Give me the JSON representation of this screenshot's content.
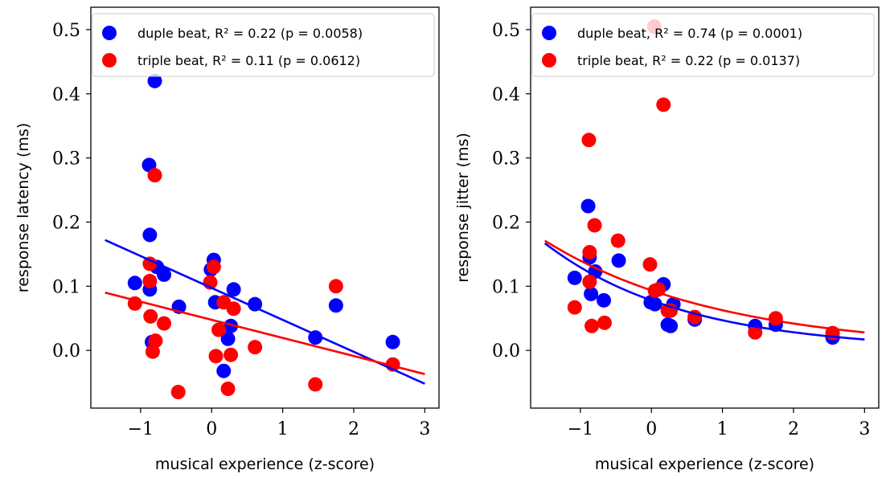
{
  "chart_data": [
    {
      "type": "scatter",
      "xlabel": "musical experience (z-score)",
      "ylabel": "response latency (ms)",
      "xlim": [
        -1.7,
        3.2
      ],
      "ylim": [
        -0.09,
        0.535
      ],
      "xticks": [
        -1,
        0,
        1,
        2,
        3
      ],
      "yticks": [
        0.0,
        0.1,
        0.2,
        0.3,
        0.4,
        0.5
      ],
      "legend_position": "top-right",
      "series": [
        {
          "name": "duple beat, R² = 0.22 (p = 0.0058)",
          "color": "#0000ff",
          "points": [
            [
              -1.08,
              0.105
            ],
            [
              -0.88,
              0.289
            ],
            [
              -0.87,
              0.18
            ],
            [
              -0.87,
              0.095
            ],
            [
              -0.84,
              0.013
            ],
            [
              -0.8,
              0.42
            ],
            [
              -0.77,
              0.13
            ],
            [
              -0.67,
              0.118
            ],
            [
              -0.46,
              0.068
            ],
            [
              -0.01,
              0.126
            ],
            [
              0.03,
              0.141
            ],
            [
              0.05,
              0.075
            ],
            [
              0.17,
              -0.032
            ],
            [
              0.23,
              0.018
            ],
            [
              0.27,
              0.038
            ],
            [
              0.31,
              0.095
            ],
            [
              0.61,
              0.072
            ],
            [
              1.46,
              0.02
            ],
            [
              1.75,
              0.07
            ],
            [
              2.55,
              0.013
            ]
          ],
          "fit": {
            "kind": "linear",
            "x_range": [
              -1.5,
              3.0
            ],
            "y_range": [
              0.172,
              -0.052
            ]
          }
        },
        {
          "name": "triple beat, R² = 0.11 (p = 0.0612)",
          "color": "#ff0000",
          "points": [
            [
              -1.08,
              0.073
            ],
            [
              -0.87,
              0.135
            ],
            [
              -0.87,
              0.108
            ],
            [
              -0.86,
              0.053
            ],
            [
              -0.83,
              -0.002
            ],
            [
              -0.8,
              0.273
            ],
            [
              -0.79,
              0.015
            ],
            [
              -0.67,
              0.042
            ],
            [
              -0.47,
              -0.065
            ],
            [
              -0.02,
              0.106
            ],
            [
              0.03,
              0.13
            ],
            [
              0.06,
              -0.009
            ],
            [
              0.1,
              0.032
            ],
            [
              0.17,
              0.075
            ],
            [
              0.23,
              -0.06
            ],
            [
              0.27,
              -0.007
            ],
            [
              0.31,
              0.065
            ],
            [
              0.61,
              0.005
            ],
            [
              1.46,
              -0.053
            ],
            [
              1.75,
              0.1
            ],
            [
              2.55,
              -0.022
            ]
          ],
          "fit": {
            "kind": "linear",
            "x_range": [
              -1.5,
              3.0
            ],
            "y_range": [
              0.09,
              -0.037
            ]
          }
        }
      ]
    },
    {
      "type": "scatter",
      "xlabel": "musical experience (z-score)",
      "ylabel": "response jitter (ms)",
      "xlim": [
        -1.7,
        3.2
      ],
      "ylim": [
        -0.09,
        0.535
      ],
      "xticks": [
        -1,
        0,
        1,
        2,
        3
      ],
      "yticks": [
        0.0,
        0.1,
        0.2,
        0.3,
        0.4,
        0.5
      ],
      "legend_position": "top-right",
      "series": [
        {
          "name": "duple beat, R² = 0.74 (p = 0.0001)",
          "color": "#0000ff",
          "points": [
            [
              -1.08,
              0.113
            ],
            [
              -0.89,
              0.225
            ],
            [
              -0.87,
              0.145
            ],
            [
              -0.85,
              0.088
            ],
            [
              -0.79,
              0.123
            ],
            [
              -0.67,
              0.078
            ],
            [
              -0.46,
              0.14
            ],
            [
              -0.01,
              0.075
            ],
            [
              0.05,
              0.072
            ],
            [
              0.17,
              0.103
            ],
            [
              0.23,
              0.04
            ],
            [
              0.27,
              0.038
            ],
            [
              0.31,
              0.072
            ],
            [
              0.61,
              0.048
            ],
            [
              1.46,
              0.038
            ],
            [
              1.75,
              0.04
            ],
            [
              2.55,
              0.02
            ]
          ],
          "fit": {
            "kind": "exponential",
            "x_range": [
              -1.5,
              3.0
            ],
            "y_range": [
              0.167,
              0.017
            ]
          }
        },
        {
          "name": "triple beat, R² = 0.22 (p = 0.0137)",
          "color": "#ff0000",
          "points": [
            [
              -1.08,
              0.067
            ],
            [
              -0.88,
              0.328
            ],
            [
              -0.87,
              0.153
            ],
            [
              -0.87,
              0.107
            ],
            [
              -0.84,
              0.038
            ],
            [
              -0.8,
              0.195
            ],
            [
              -0.66,
              0.043
            ],
            [
              -0.47,
              0.171
            ],
            [
              -0.02,
              0.134
            ],
            [
              0.04,
              0.505
            ],
            [
              0.05,
              0.093
            ],
            [
              0.1,
              0.095
            ],
            [
              0.17,
              0.383
            ],
            [
              0.23,
              0.062
            ],
            [
              0.27,
              0.062
            ],
            [
              0.61,
              0.052
            ],
            [
              1.46,
              0.028
            ],
            [
              1.75,
              0.05
            ],
            [
              2.55,
              0.027
            ]
          ],
          "fit": {
            "kind": "exponential",
            "x_range": [
              -1.5,
              3.0
            ],
            "y_range": [
              0.171,
              0.028
            ]
          }
        }
      ]
    }
  ]
}
